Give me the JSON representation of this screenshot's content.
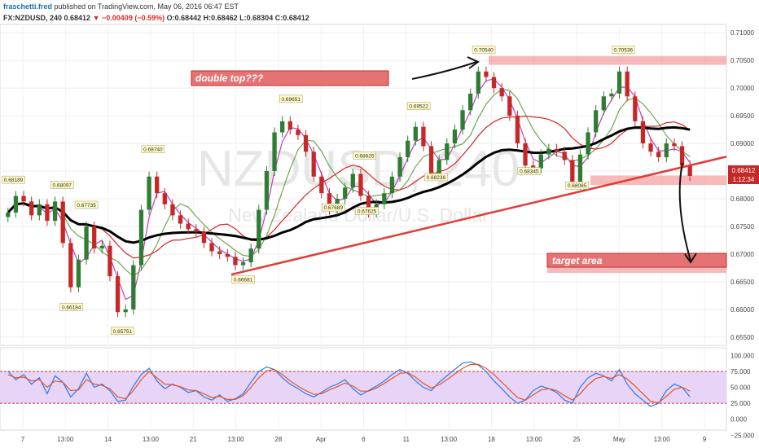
{
  "header": {
    "author": "fraschetti.fred",
    "published": "published on TradingView.com, May 06, 2016 06:47 EST",
    "symbol": "FX:NZDUSD, 240",
    "last": "0.68412",
    "change_arrow": "▼",
    "change": "−0.00409 (−0.59%)",
    "ohlc": "O:0.68442 H:0.68462 L:0.68304 C:0.68412"
  },
  "watermark": {
    "big": "NZDUSD, 240",
    "sub": "New Zealand Dollar/U.S. Dollar"
  },
  "annotations": {
    "double_top": "double top???",
    "target": "target area"
  },
  "price_tags": {
    "last": "0.68412",
    "countdown": "1:12:34"
  },
  "colors": {
    "up": "#2e7d32",
    "down": "#c62828",
    "ma_black": "#000000",
    "ma_red": "#d62828",
    "ma_green": "#6aa84f",
    "ma_magenta": "#c13ec1",
    "trendline": "#e53935",
    "zone": "#f08080",
    "osc_band": "#e7d4f7",
    "osc_blue": "#2b7de9",
    "osc_red": "#e65528"
  },
  "chart_data": {
    "type": "candlestick",
    "price_axis": {
      "ylim": [
        0.6535,
        0.7115
      ],
      "ticks": [
        "0.71000",
        "0.70500",
        "0.70000",
        "0.69500",
        "0.69000",
        "0.68500",
        "0.68000",
        "0.67500",
        "0.67000",
        "0.66500",
        "0.66000",
        "0.65500"
      ]
    },
    "time_axis": [
      "7",
      "13:00",
      "14",
      "13:00",
      "21",
      "13:00",
      "28",
      "Apr",
      "6",
      "11",
      "13:00",
      "18",
      "13:00",
      "25",
      "May",
      "13:00",
      "9"
    ],
    "price_labels": [
      {
        "text": "0.68189",
        "x": 0.7,
        "y": 0.68189
      },
      {
        "text": "0.68097",
        "x": 6.9,
        "y": 0.68097
      },
      {
        "text": "0.66184",
        "x": 8.1,
        "y": 0.66184
      },
      {
        "text": "0.67735",
        "x": 10.0,
        "y": 0.67735
      },
      {
        "text": "0.65751",
        "x": 14.6,
        "y": 0.65751
      },
      {
        "text": "0.68740",
        "x": 18.5,
        "y": 0.6874
      },
      {
        "text": "0.66681",
        "x": 30.0,
        "y": 0.66681
      },
      {
        "text": "0.69651",
        "x": 36.1,
        "y": 0.69651
      },
      {
        "text": "0.67689",
        "x": 41.5,
        "y": 0.67689
      },
      {
        "text": "0.68625",
        "x": 45.5,
        "y": 0.68625
      },
      {
        "text": "0.67625",
        "x": 45.8,
        "y": 0.67625
      },
      {
        "text": "0.69522",
        "x": 52.4,
        "y": 0.69522
      },
      {
        "text": "0.68236",
        "x": 54.6,
        "y": 0.68236
      },
      {
        "text": "0.70540",
        "x": 60.7,
        "y": 0.7054
      },
      {
        "text": "0.68345",
        "x": 66.5,
        "y": 0.68345
      },
      {
        "text": "0.68085",
        "x": 72.6,
        "y": 0.68085
      },
      {
        "text": "0.70536",
        "x": 78.5,
        "y": 0.70536
      }
    ],
    "series_close": [
      {
        "x": 0,
        "y": 0.6775
      },
      {
        "x": 1,
        "y": 0.6805
      },
      {
        "x": 2,
        "y": 0.6795
      },
      {
        "x": 3,
        "y": 0.677
      },
      {
        "x": 4,
        "y": 0.679
      },
      {
        "x": 5,
        "y": 0.676
      },
      {
        "x": 6,
        "y": 0.6795
      },
      {
        "x": 7,
        "y": 0.672
      },
      {
        "x": 8,
        "y": 0.664
      },
      {
        "x": 9,
        "y": 0.669
      },
      {
        "x": 10,
        "y": 0.675
      },
      {
        "x": 11,
        "y": 0.671
      },
      {
        "x": 12,
        "y": 0.6715
      },
      {
        "x": 13,
        "y": 0.666
      },
      {
        "x": 14,
        "y": 0.6595
      },
      {
        "x": 15,
        "y": 0.66
      },
      {
        "x": 16,
        "y": 0.668
      },
      {
        "x": 17,
        "y": 0.678
      },
      {
        "x": 18,
        "y": 0.684
      },
      {
        "x": 19,
        "y": 0.681
      },
      {
        "x": 20,
        "y": 0.679
      },
      {
        "x": 21,
        "y": 0.677
      },
      {
        "x": 22,
        "y": 0.6755
      },
      {
        "x": 23,
        "y": 0.6745
      },
      {
        "x": 24,
        "y": 0.674
      },
      {
        "x": 25,
        "y": 0.672
      },
      {
        "x": 26,
        "y": 0.6705
      },
      {
        "x": 27,
        "y": 0.67
      },
      {
        "x": 28,
        "y": 0.6695
      },
      {
        "x": 29,
        "y": 0.668
      },
      {
        "x": 30,
        "y": 0.6685
      },
      {
        "x": 31,
        "y": 0.671
      },
      {
        "x": 32,
        "y": 0.678
      },
      {
        "x": 33,
        "y": 0.685
      },
      {
        "x": 34,
        "y": 0.692
      },
      {
        "x": 35,
        "y": 0.694
      },
      {
        "x": 36,
        "y": 0.6925
      },
      {
        "x": 37,
        "y": 0.6915
      },
      {
        "x": 38,
        "y": 0.6885
      },
      {
        "x": 39,
        "y": 0.684
      },
      {
        "x": 40,
        "y": 0.681
      },
      {
        "x": 41,
        "y": 0.678
      },
      {
        "x": 42,
        "y": 0.68
      },
      {
        "x": 43,
        "y": 0.682
      },
      {
        "x": 44,
        "y": 0.6845
      },
      {
        "x": 45,
        "y": 0.6805
      },
      {
        "x": 46,
        "y": 0.6775
      },
      {
        "x": 47,
        "y": 0.679
      },
      {
        "x": 48,
        "y": 0.681
      },
      {
        "x": 49,
        "y": 0.684
      },
      {
        "x": 50,
        "y": 0.6875
      },
      {
        "x": 51,
        "y": 0.6905
      },
      {
        "x": 52,
        "y": 0.693
      },
      {
        "x": 53,
        "y": 0.6895
      },
      {
        "x": 54,
        "y": 0.6845
      },
      {
        "x": 55,
        "y": 0.687
      },
      {
        "x": 56,
        "y": 0.69
      },
      {
        "x": 57,
        "y": 0.6925
      },
      {
        "x": 58,
        "y": 0.696
      },
      {
        "x": 59,
        "y": 0.699
      },
      {
        "x": 60,
        "y": 0.703
      },
      {
        "x": 61,
        "y": 0.702
      },
      {
        "x": 62,
        "y": 0.7
      },
      {
        "x": 63,
        "y": 0.6985
      },
      {
        "x": 64,
        "y": 0.695
      },
      {
        "x": 65,
        "y": 0.69
      },
      {
        "x": 66,
        "y": 0.686
      },
      {
        "x": 67,
        "y": 0.6855
      },
      {
        "x": 68,
        "y": 0.688
      },
      {
        "x": 69,
        "y": 0.689
      },
      {
        "x": 70,
        "y": 0.6885
      },
      {
        "x": 71,
        "y": 0.687
      },
      {
        "x": 72,
        "y": 0.6825
      },
      {
        "x": 73,
        "y": 0.688
      },
      {
        "x": 74,
        "y": 0.692
      },
      {
        "x": 75,
        "y": 0.696
      },
      {
        "x": 76,
        "y": 0.6985
      },
      {
        "x": 77,
        "y": 0.699
      },
      {
        "x": 78,
        "y": 0.703
      },
      {
        "x": 79,
        "y": 0.6985
      },
      {
        "x": 80,
        "y": 0.694
      },
      {
        "x": 81,
        "y": 0.69
      },
      {
        "x": 82,
        "y": 0.6885
      },
      {
        "x": 83,
        "y": 0.6875
      },
      {
        "x": 84,
        "y": 0.69
      },
      {
        "x": 85,
        "y": 0.6895
      },
      {
        "x": 86,
        "y": 0.686
      },
      {
        "x": 87,
        "y": 0.68412
      }
    ],
    "zones": [
      {
        "name": "double top",
        "y1": 0.7042,
        "y2": 0.7058
      },
      {
        "name": "current",
        "y1": 0.6825,
        "y2": 0.6842
      },
      {
        "name": "target area",
        "y1": 0.6666,
        "y2": 0.668
      }
    ],
    "trendline": [
      {
        "x": 29,
        "y": 0.6663
      },
      {
        "x": 89,
        "y": 0.6876
      }
    ],
    "oscillator": {
      "ylim": [
        -17,
        112
      ],
      "ticks": [
        "100.000",
        "75.000",
        "50.000",
        "25.000",
        "0.000",
        "−25.000"
      ],
      "upper": 75,
      "lower": 25,
      "k": [
        75,
        62,
        70,
        55,
        65,
        40,
        68,
        58,
        35,
        48,
        72,
        50,
        55,
        45,
        28,
        30,
        52,
        70,
        80,
        60,
        48,
        55,
        50,
        42,
        45,
        35,
        30,
        38,
        28,
        32,
        40,
        58,
        75,
        82,
        78,
        65,
        55,
        48,
        40,
        35,
        42,
        50,
        55,
        62,
        48,
        38,
        45,
        52,
        60,
        70,
        78,
        72,
        60,
        50,
        45,
        58,
        68,
        78,
        88,
        90,
        85,
        75,
        60,
        48,
        35,
        25,
        30,
        45,
        52,
        48,
        42,
        30,
        25,
        50,
        65,
        72,
        68,
        60,
        78,
        55,
        40,
        30,
        20,
        25,
        45,
        55,
        50,
        35
      ],
      "d": [
        70,
        65,
        66,
        60,
        62,
        50,
        60,
        58,
        45,
        46,
        62,
        55,
        53,
        48,
        35,
        32,
        45,
        62,
        75,
        65,
        55,
        54,
        51,
        46,
        45,
        40,
        34,
        36,
        31,
        31,
        37,
        50,
        65,
        76,
        78,
        70,
        60,
        52,
        45,
        39,
        40,
        46,
        51,
        57,
        52,
        44,
        44,
        49,
        56,
        64,
        72,
        73,
        66,
        56,
        49,
        54,
        62,
        71,
        80,
        86,
        86,
        80,
        70,
        58,
        46,
        34,
        30,
        38,
        46,
        48,
        45,
        37,
        30,
        40,
        54,
        64,
        67,
        64,
        70,
        63,
        52,
        40,
        28,
        26,
        36,
        47,
        50,
        44
      ]
    }
  }
}
